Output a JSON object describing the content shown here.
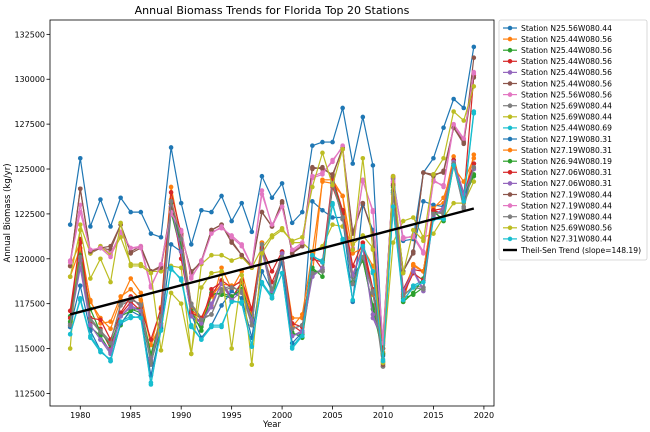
{
  "chart_data": {
    "type": "line",
    "title": "Annual Biomass Trends for Florida Top 20 Stations",
    "xlabel": "Year",
    "ylabel": "Annual Biomass (kg/yr)",
    "xlim": [
      1977.0,
      2021.0
    ],
    "ylim": [
      111800,
      133300
    ],
    "xticks": [
      1980,
      1985,
      1990,
      1995,
      2000,
      2005,
      2010,
      2015,
      2020
    ],
    "yticks": [
      112500,
      115000,
      117500,
      120000,
      122500,
      125000,
      127500,
      130000,
      132500
    ],
    "xtick_labels": [
      "1980",
      "1985",
      "1990",
      "1995",
      "2000",
      "2005",
      "2010",
      "2015",
      "2020"
    ],
    "ytick_labels": [
      "112500",
      "115000",
      "117500",
      "120000",
      "122500",
      "125000",
      "127500",
      "130000",
      "132500"
    ],
    "grid": false,
    "legend_position": "outside-right",
    "x": [
      1979,
      1980,
      1981,
      1982,
      1983,
      1984,
      1985,
      1986,
      1987,
      1988,
      1989,
      1990,
      1991,
      1992,
      1993,
      1994,
      1995,
      1996,
      1997,
      1998,
      1999,
      2000,
      2001,
      2002,
      2003,
      2004,
      2005,
      2006,
      2007,
      2008,
      2009,
      2010,
      2011,
      2012,
      2013,
      2014,
      2015,
      2016,
      2017,
      2018,
      2019
    ],
    "series": [
      {
        "name": "Station N25.56W080.44",
        "color": "#1f77b4",
        "values": [
          121900,
          125600,
          121800,
          123300,
          121800,
          123400,
          122600,
          122600,
          121400,
          121200,
          126200,
          123100,
          120800,
          122700,
          122600,
          123500,
          122100,
          123100,
          121500,
          124600,
          123400,
          124200,
          122000,
          122600,
          126300,
          126500,
          126500,
          128400,
          125300,
          127900,
          125200,
          114700,
          124500,
          121000,
          121100,
          124800,
          125600,
          127300,
          128900,
          128400,
          131800
        ]
      },
      {
        "name": "Station N25.44W080.56",
        "color": "#ff7f0e",
        "values": [
          119600,
          120900,
          117600,
          116700,
          116100,
          117700,
          118900,
          118100,
          115200,
          117300,
          124000,
          121200,
          117500,
          116700,
          117400,
          119500,
          118300,
          119300,
          117100,
          120900,
          118200,
          120300,
          116700,
          116700,
          119100,
          124400,
          124400,
          123500,
          119100,
          120700,
          118000,
          115200,
          122800,
          118100,
          119600,
          119300,
          122900,
          123100,
          125700,
          123400,
          125800
        ]
      },
      {
        "name": "Station N25.44W080.56",
        "color": "#2ca02c",
        "values": [
          116800,
          120400,
          116200,
          115700,
          114800,
          116300,
          117200,
          117000,
          114200,
          116200,
          122600,
          120400,
          116800,
          116200,
          118100,
          118000,
          117800,
          118600,
          116500,
          120900,
          117800,
          120000,
          115900,
          115600,
          119300,
          119300,
          124100,
          122600,
          119000,
          119900,
          117400,
          115000,
          123800,
          117800,
          118000,
          118400,
          122600,
          122200,
          125500,
          123400,
          124600
        ]
      },
      {
        "name": "Station N25.44W080.56",
        "color": "#d62728",
        "values": [
          116700,
          120900,
          116500,
          116100,
          115000,
          116900,
          117600,
          117100,
          114500,
          116900,
          123200,
          120000,
          117000,
          116400,
          118300,
          118700,
          117800,
          118700,
          116900,
          120400,
          118700,
          120000,
          116300,
          115900,
          120200,
          119400,
          124000,
          122500,
          119100,
          120600,
          118100,
          115600,
          124200,
          118300,
          119400,
          119300,
          122700,
          122500,
          125500,
          123400,
          130200
        ]
      },
      {
        "name": "Station N25.44W080.56",
        "color": "#9467bd",
        "values": [
          116400,
          119500,
          116300,
          115500,
          114700,
          116800,
          117400,
          117100,
          114500,
          116400,
          123100,
          120400,
          116900,
          116500,
          117300,
          118700,
          117900,
          118200,
          116500,
          120500,
          118200,
          120300,
          115700,
          116000,
          119200,
          119300,
          124400,
          122200,
          119000,
          120600,
          116700,
          115400,
          124500,
          117900,
          119400,
          118300,
          122500,
          122700,
          125400,
          123700,
          125000
        ]
      },
      {
        "name": "Station N25.44W080.56",
        "color": "#8c564b",
        "values": [
          119600,
          123900,
          120300,
          120600,
          120500,
          121900,
          120400,
          120700,
          119300,
          119600,
          122900,
          121400,
          119200,
          119900,
          121600,
          121900,
          120900,
          120200,
          119500,
          122600,
          121800,
          123100,
          120300,
          120800,
          125100,
          125000,
          124700,
          126100,
          121400,
          123100,
          121400,
          114000,
          124100,
          119300,
          120300,
          124800,
          124700,
          124800,
          127300,
          126400,
          131200
        ]
      },
      {
        "name": "Station N25.56W080.56",
        "color": "#e377c2",
        "values": [
          119900,
          123000,
          120300,
          120700,
          120300,
          121400,
          120600,
          120700,
          118500,
          119600,
          122500,
          121600,
          118900,
          119900,
          121500,
          121700,
          121300,
          120800,
          119600,
          123800,
          121800,
          122900,
          120400,
          120800,
          124500,
          124700,
          125500,
          126200,
          120500,
          124400,
          122600,
          115400,
          124300,
          121200,
          121200,
          120300,
          124400,
          124000,
          127400,
          126600,
          130300
        ]
      },
      {
        "name": "Station N25.69W080.44",
        "color": "#7f7f7f",
        "values": [
          116200,
          120000,
          116700,
          116000,
          115400,
          117400,
          117700,
          117500,
          114100,
          116700,
          123100,
          121000,
          117500,
          116700,
          116900,
          118300,
          118500,
          118100,
          116300,
          120700,
          118200,
          120000,
          116100,
          116300,
          119100,
          119400,
          124300,
          122200,
          118600,
          120000,
          118100,
          114000,
          123700,
          117900,
          118500,
          118400,
          122600,
          122500,
          125200,
          122900,
          125300
        ]
      },
      {
        "name": "Station N25.69W080.44",
        "color": "#bcbd22",
        "values": [
          115000,
          121900,
          120300,
          120700,
          120200,
          121200,
          119700,
          119700,
          119300,
          119300,
          119600,
          119500,
          114700,
          119700,
          120200,
          120200,
          119900,
          120100,
          119500,
          120600,
          121300,
          121700,
          120900,
          120900,
          120400,
          120700,
          121900,
          121800,
          120800,
          121300,
          120600,
          114300,
          120900,
          122100,
          122300,
          121200,
          121400,
          122300,
          123100,
          123100,
          124300
        ]
      },
      {
        "name": "Station N25.44W080.69",
        "color": "#17becf",
        "values": [
          115800,
          117700,
          115600,
          114800,
          114400,
          116400,
          116700,
          116800,
          113000,
          116100,
          119400,
          118900,
          116300,
          115500,
          116200,
          116200,
          117700,
          117500,
          115200,
          118600,
          117800,
          119200,
          115100,
          115800,
          120100,
          119900,
          123100,
          121000,
          117700,
          120800,
          119200,
          114400,
          122800,
          117600,
          118500,
          118800,
          122300,
          122200,
          125300,
          123300,
          128200
        ]
      },
      {
        "name": "Station N27.19W080.31",
        "color": "#1f77b4",
        "values": [
          116200,
          118500,
          116000,
          114900,
          114300,
          116400,
          117100,
          116800,
          113500,
          116100,
          120800,
          120400,
          116900,
          115600,
          116300,
          117400,
          118200,
          117800,
          115600,
          119300,
          118200,
          119800,
          115300,
          115900,
          123200,
          122700,
          122300,
          122300,
          117600,
          123000,
          121600,
          114600,
          123700,
          119300,
          120400,
          123200,
          123000,
          122900,
          125200,
          123200,
          125300
        ]
      },
      {
        "name": "Station N27.19W080.31",
        "color": "#ff7f0e",
        "values": [
          119000,
          120600,
          117700,
          116400,
          116500,
          117900,
          118300,
          117700,
          115200,
          116400,
          123300,
          121100,
          117200,
          116600,
          117900,
          118600,
          118500,
          118700,
          116800,
          120900,
          118100,
          120300,
          116200,
          116900,
          120300,
          124300,
          124200,
          123500,
          120300,
          120600,
          119600,
          114800,
          124500,
          117600,
          119700,
          119300,
          122800,
          123400,
          125100,
          124300,
          125600
        ]
      },
      {
        "name": "Station N26.94W080.19",
        "color": "#2ca02c",
        "values": [
          116500,
          120200,
          117200,
          115900,
          115200,
          116800,
          117100,
          117300,
          114700,
          116600,
          123100,
          120700,
          117100,
          116000,
          118000,
          118100,
          117900,
          118300,
          116700,
          120500,
          118100,
          120400,
          115800,
          115800,
          119500,
          119000,
          124200,
          122700,
          118700,
          120000,
          117200,
          114700,
          124000,
          117600,
          118100,
          118900,
          122700,
          122100,
          125200,
          123600,
          124700
        ]
      },
      {
        "name": "Station N27.06W080.31",
        "color": "#d62728",
        "values": [
          117100,
          121100,
          116700,
          116600,
          115500,
          117000,
          117900,
          117300,
          115500,
          117200,
          123700,
          121400,
          117000,
          116700,
          118000,
          118800,
          118400,
          118800,
          117200,
          120600,
          119300,
          120400,
          116400,
          116200,
          120000,
          119800,
          124500,
          122700,
          119600,
          120900,
          118300,
          115000,
          124600,
          118000,
          119200,
          118800,
          122700,
          122800,
          125300,
          123600,
          125300
        ]
      },
      {
        "name": "Station N27.06W080.31",
        "color": "#9467bd",
        "values": [
          116300,
          119900,
          116300,
          115500,
          114900,
          116800,
          117300,
          117100,
          114400,
          116300,
          122900,
          120400,
          116800,
          116400,
          117500,
          118600,
          117700,
          118200,
          116600,
          120400,
          118200,
          120300,
          115700,
          115900,
          119000,
          119500,
          124200,
          122300,
          119100,
          120600,
          116900,
          115300,
          124400,
          118200,
          119300,
          118200,
          122400,
          122800,
          125300,
          123600,
          125000
        ]
      },
      {
        "name": "Station N27.19W080.44",
        "color": "#8c564b",
        "values": [
          119600,
          123900,
          120400,
          120600,
          120700,
          121900,
          120300,
          120600,
          119300,
          119500,
          122800,
          121300,
          119300,
          119800,
          121600,
          121900,
          121000,
          120200,
          119600,
          122600,
          121800,
          123200,
          120300,
          120700,
          125000,
          125100,
          124600,
          126200,
          121500,
          123100,
          121400,
          114100,
          124100,
          119300,
          120400,
          124800,
          124600,
          124900,
          127300,
          126500,
          130100
        ]
      },
      {
        "name": "Station N27.19W080.44",
        "color": "#e377c2",
        "values": [
          119800,
          122600,
          120500,
          120600,
          120100,
          121500,
          120600,
          120600,
          118400,
          119700,
          122600,
          121500,
          119000,
          119800,
          121400,
          121800,
          121200,
          120700,
          119600,
          123600,
          121900,
          122900,
          120500,
          120900,
          124600,
          124800,
          125400,
          126300,
          120600,
          124300,
          122700,
          115300,
          124300,
          121100,
          121300,
          120400,
          124300,
          124100,
          127500,
          126700,
          130400
        ]
      },
      {
        "name": "Station N27.19W080.44",
        "color": "#7f7f7f",
        "values": [
          116300,
          120100,
          116600,
          115900,
          115300,
          117500,
          117800,
          117400,
          114300,
          116800,
          123200,
          121100,
          117400,
          116600,
          116900,
          118200,
          118400,
          118200,
          116300,
          120800,
          118300,
          120100,
          116100,
          116300,
          119200,
          119300,
          124200,
          122300,
          118600,
          120100,
          118200,
          114200,
          123600,
          118000,
          118400,
          118300,
          122500,
          122600,
          125300,
          122800,
          125100
        ]
      },
      {
        "name": "Station N25.69W080.56",
        "color": "#bcbd22",
        "values": [
          119000,
          121600,
          118900,
          120000,
          118700,
          122000,
          119600,
          119600,
          119200,
          114900,
          118100,
          117500,
          114700,
          118400,
          119200,
          119300,
          115000,
          119100,
          114100,
          120300,
          121200,
          121600,
          121000,
          121200,
          124000,
          125900,
          124100,
          126100,
          120500,
          125600,
          120500,
          114200,
          124600,
          119200,
          121600,
          121000,
          124700,
          125600,
          128200,
          127700,
          129600
        ]
      },
      {
        "name": "Station N27.31W080.44",
        "color": "#17becf",
        "values": [
          115800,
          117800,
          115700,
          114900,
          114300,
          116500,
          116800,
          116700,
          113100,
          116000,
          119500,
          118800,
          116200,
          115500,
          116300,
          116300,
          117600,
          117600,
          115100,
          118700,
          117900,
          119200,
          115000,
          115700,
          120200,
          119800,
          123000,
          121100,
          117700,
          120700,
          119300,
          114300,
          122900,
          117700,
          118400,
          118700,
          122200,
          122200,
          125200,
          123200,
          128100
        ]
      }
    ],
    "trend": {
      "name": "Theil-Sen Trend (slope=148.19)",
      "color": "#000000",
      "x": [
        1979,
        2019
      ],
      "values": [
        116900,
        122800
      ]
    }
  }
}
